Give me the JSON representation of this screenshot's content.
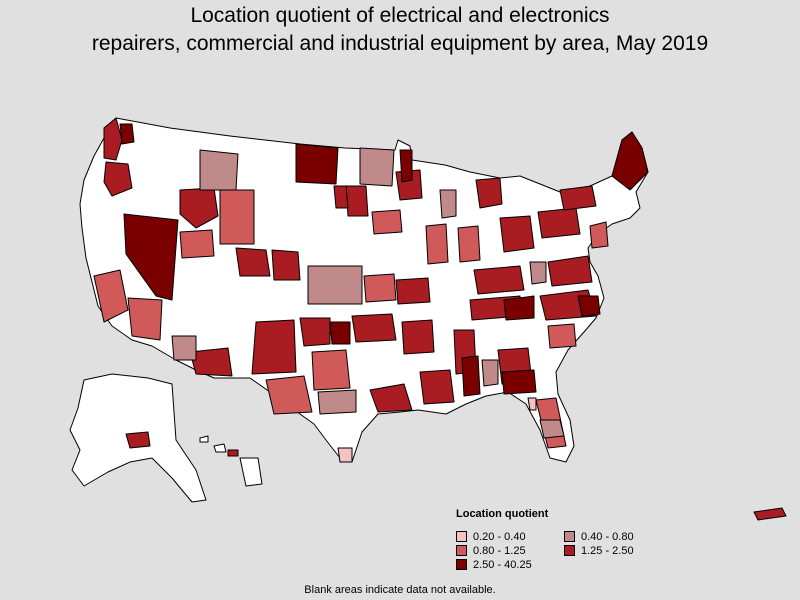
{
  "title_line1": "Location quotient of electrical and electronics",
  "title_line2": "repairers, commercial and industrial equipment by area, May 2019",
  "legend": {
    "title": "Location quotient",
    "items": [
      {
        "label": "0.20 - 0.40",
        "color": "#f4c2c2"
      },
      {
        "label": "0.40 - 0.80",
        "color": "#c08a8a"
      },
      {
        "label": "0.80 - 1.25",
        "color": "#d05a5a"
      },
      {
        "label": "1.25 - 2.50",
        "color": "#a81c22"
      },
      {
        "label": "2.50 - 40.25",
        "color": "#7a0000"
      }
    ]
  },
  "footnote": "Blank areas indicate data not available.",
  "colors": {
    "no_data": "#ffffff",
    "background": "#e0e0e0",
    "border": "#000000"
  }
}
